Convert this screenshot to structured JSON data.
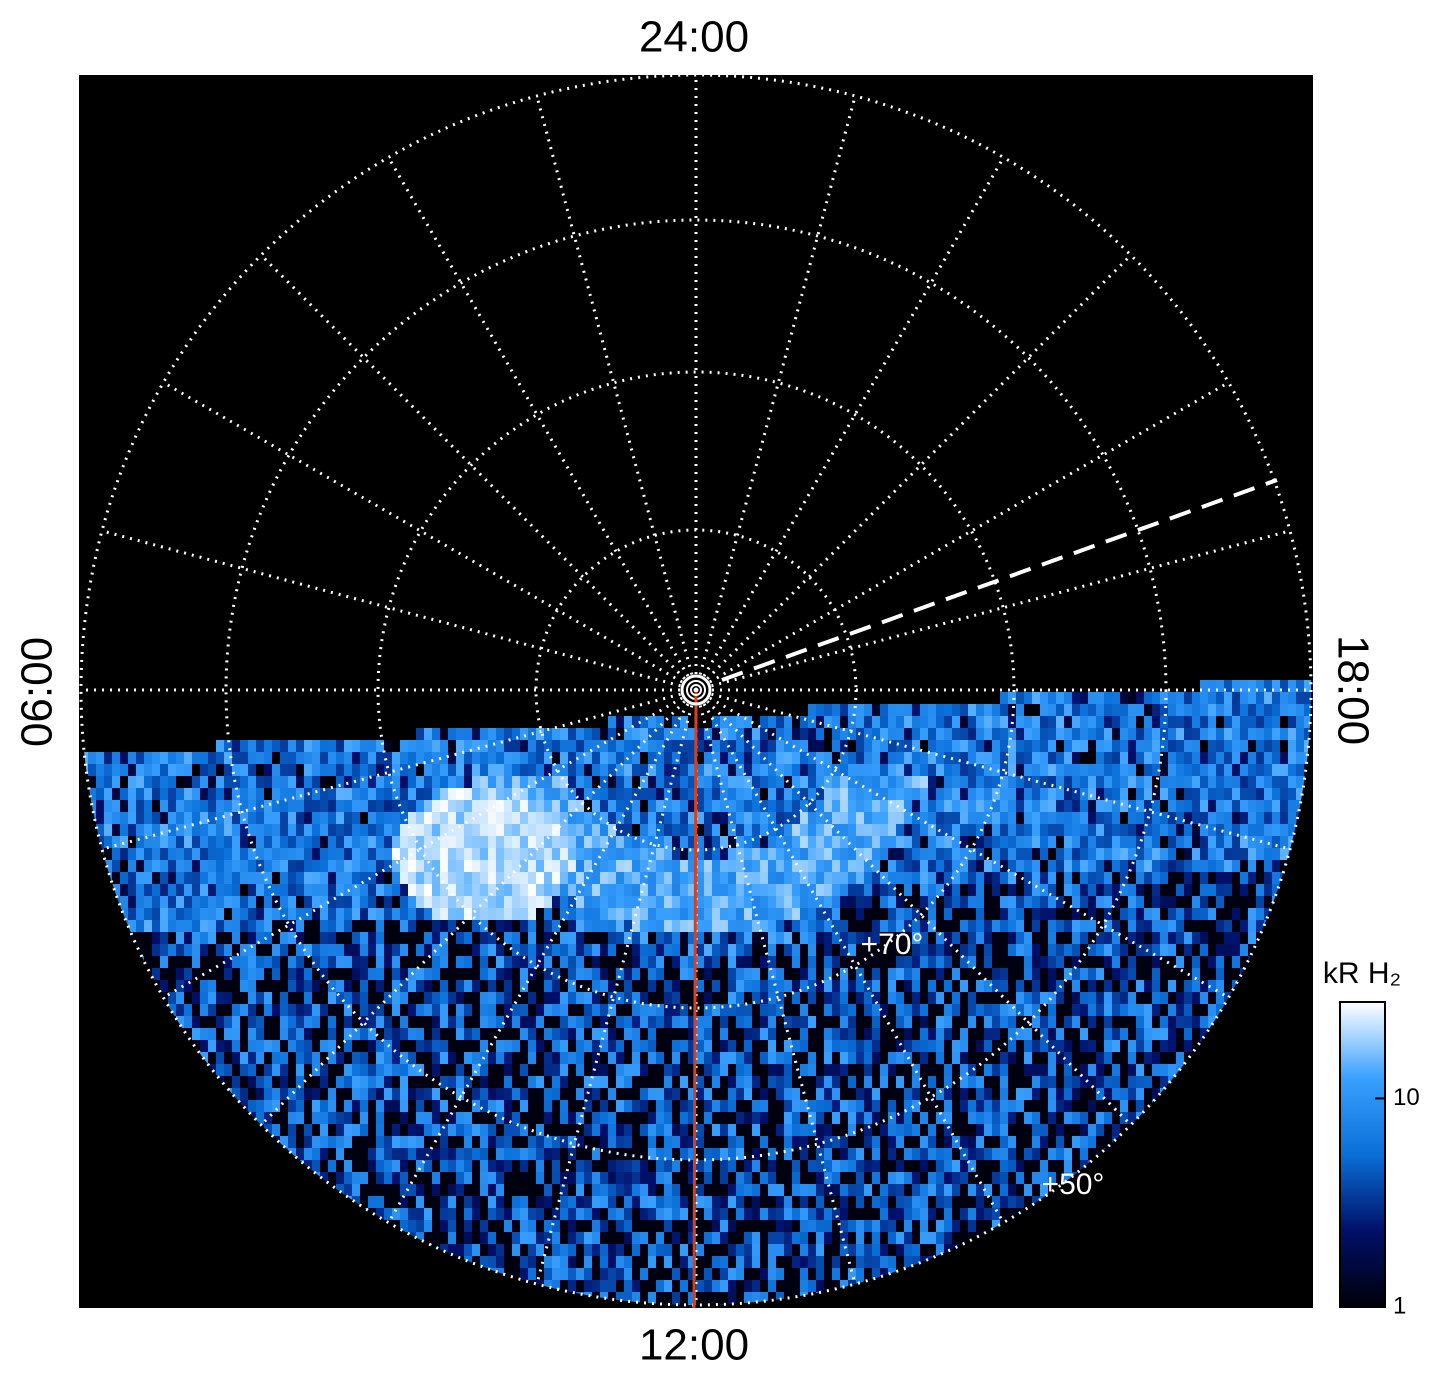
{
  "chart_data": {
    "type": "polar-image",
    "local_time_labels": {
      "top": "24:00",
      "left": "06:00",
      "bottom": "12:00",
      "right": "18:00"
    },
    "latitude_labels": [
      "+70°",
      "+50°"
    ],
    "colorbar": {
      "label": "kR H₂",
      "lim": [
        1,
        29
      ],
      "ticks": [
        1,
        10
      ],
      "log": true,
      "colors": [
        "#000008",
        "#00106a",
        "#0a6fd8",
        "#39a0ff",
        "#ffffff"
      ]
    },
    "background": "#000000",
    "grid_color": "#ffffff",
    "meridian_color": "#d8401c"
  }
}
